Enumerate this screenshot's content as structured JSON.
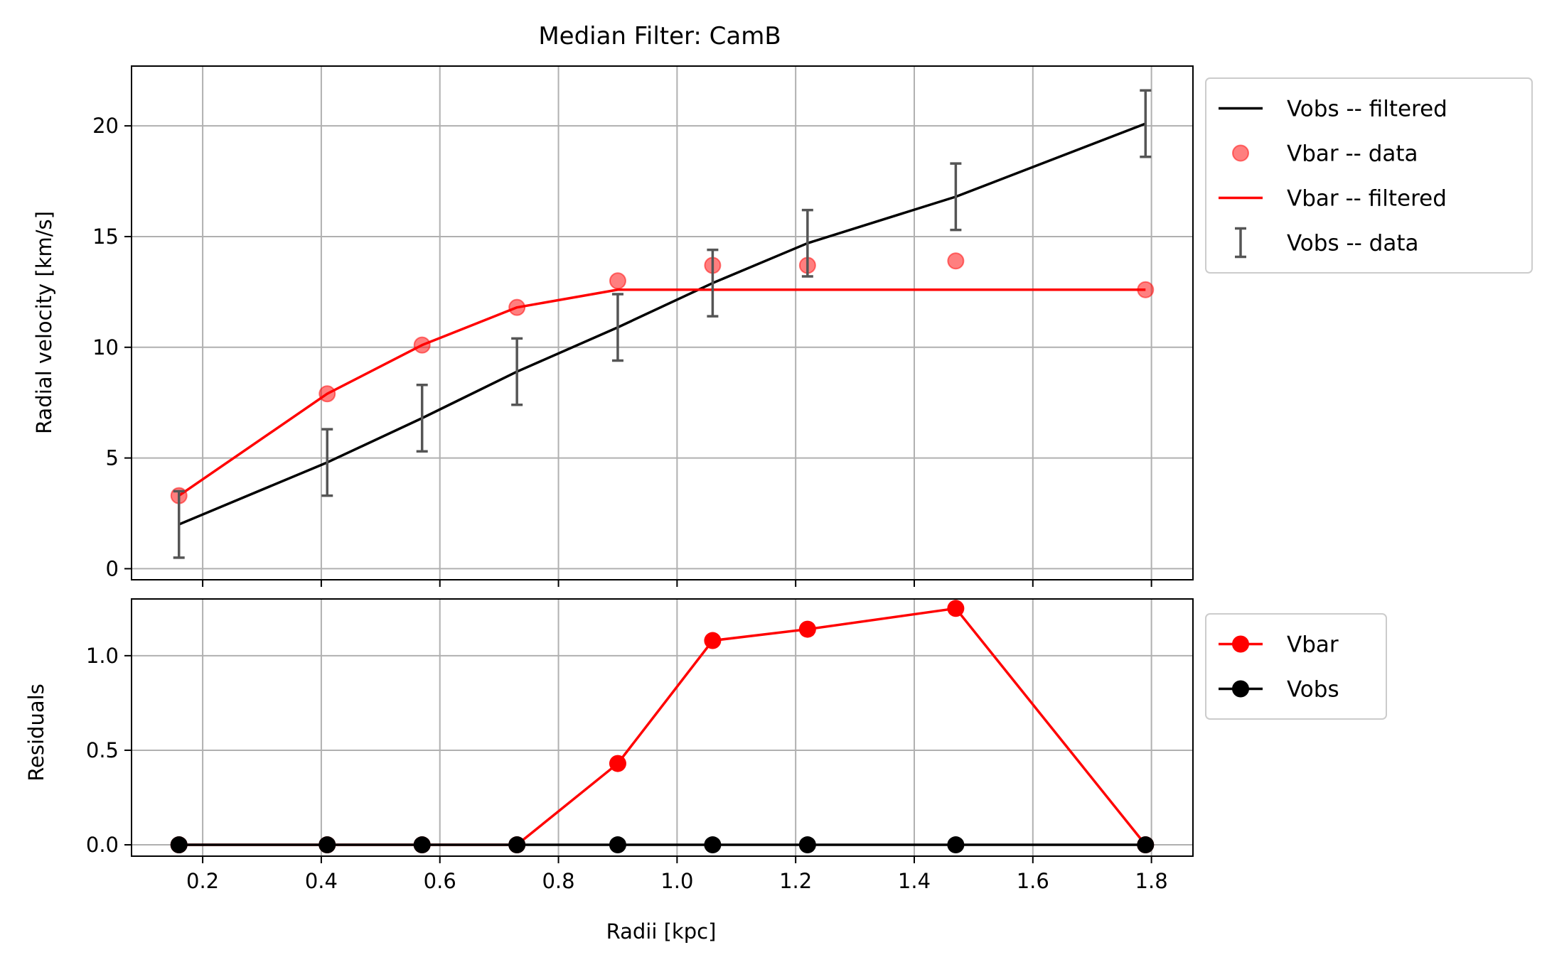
{
  "chart_data": [
    {
      "type": "line",
      "title": "Median Filter: CamB",
      "xlabel": "",
      "ylabel": "Radial velocity [km/s]",
      "xlim": [
        0.08,
        1.87
      ],
      "ylim": [
        -0.5,
        22.7
      ],
      "xticks": [
        0.2,
        0.4,
        0.6,
        0.8,
        1.0,
        1.2,
        1.4,
        1.6,
        1.8
      ],
      "yticks": [
        0,
        5,
        10,
        15,
        20
      ],
      "ytick_labels": [
        "0",
        "5",
        "10",
        "15",
        "20"
      ],
      "grid": true,
      "legend_position": "outside right, top",
      "x": [
        0.16,
        0.41,
        0.57,
        0.73,
        0.9,
        1.06,
        1.22,
        1.47,
        1.79
      ],
      "series": [
        {
          "name": "Vobs -- filtered",
          "kind": "line",
          "color": "#000000",
          "values": [
            2.0,
            4.8,
            6.8,
            8.9,
            10.9,
            12.9,
            14.7,
            16.8,
            20.1
          ]
        },
        {
          "name": "Vbar -- data",
          "kind": "scatter",
          "color": "#ff0000",
          "values": [
            3.3,
            7.9,
            10.1,
            11.8,
            13.0,
            13.7,
            13.7,
            13.9,
            12.6
          ]
        },
        {
          "name": "Vbar -- filtered",
          "kind": "line",
          "color": "#ff0000",
          "values": [
            3.3,
            7.9,
            10.1,
            11.8,
            12.6,
            12.6,
            12.6,
            12.6,
            12.6
          ]
        },
        {
          "name": "Vobs -- data",
          "kind": "errorbar",
          "color": "#555555",
          "values": [
            2.0,
            4.8,
            6.8,
            8.9,
            10.9,
            12.9,
            14.7,
            16.8,
            20.1
          ],
          "errors": [
            1.5,
            1.5,
            1.5,
            1.5,
            1.5,
            1.5,
            1.5,
            1.5,
            1.5
          ]
        }
      ]
    },
    {
      "type": "line",
      "title": "",
      "xlabel": "Radii [kpc]",
      "ylabel": "Residuals",
      "xlim": [
        0.08,
        1.87
      ],
      "ylim": [
        -0.06,
        1.3
      ],
      "xticks": [
        0.2,
        0.4,
        0.6,
        0.8,
        1.0,
        1.2,
        1.4,
        1.6,
        1.8
      ],
      "xtick_labels": [
        "0.2",
        "0.4",
        "0.6",
        "0.8",
        "1.0",
        "1.2",
        "1.4",
        "1.6",
        "1.8"
      ],
      "yticks": [
        0.0,
        0.5,
        1.0
      ],
      "ytick_labels": [
        "0.0",
        "0.5",
        "1.0"
      ],
      "grid": true,
      "legend_position": "outside right, top",
      "x": [
        0.16,
        0.41,
        0.57,
        0.73,
        0.9,
        1.06,
        1.22,
        1.47,
        1.79
      ],
      "series": [
        {
          "name": "Vbar",
          "kind": "line-marker",
          "color": "#ff0000",
          "values": [
            0.0,
            0.0,
            0.0,
            0.0,
            0.43,
            1.08,
            1.14,
            1.25,
            0.0
          ]
        },
        {
          "name": "Vobs",
          "kind": "line-marker",
          "color": "#000000",
          "values": [
            0.0,
            0.0,
            0.0,
            0.0,
            0.0,
            0.0,
            0.0,
            0.0,
            0.0
          ]
        }
      ]
    }
  ]
}
